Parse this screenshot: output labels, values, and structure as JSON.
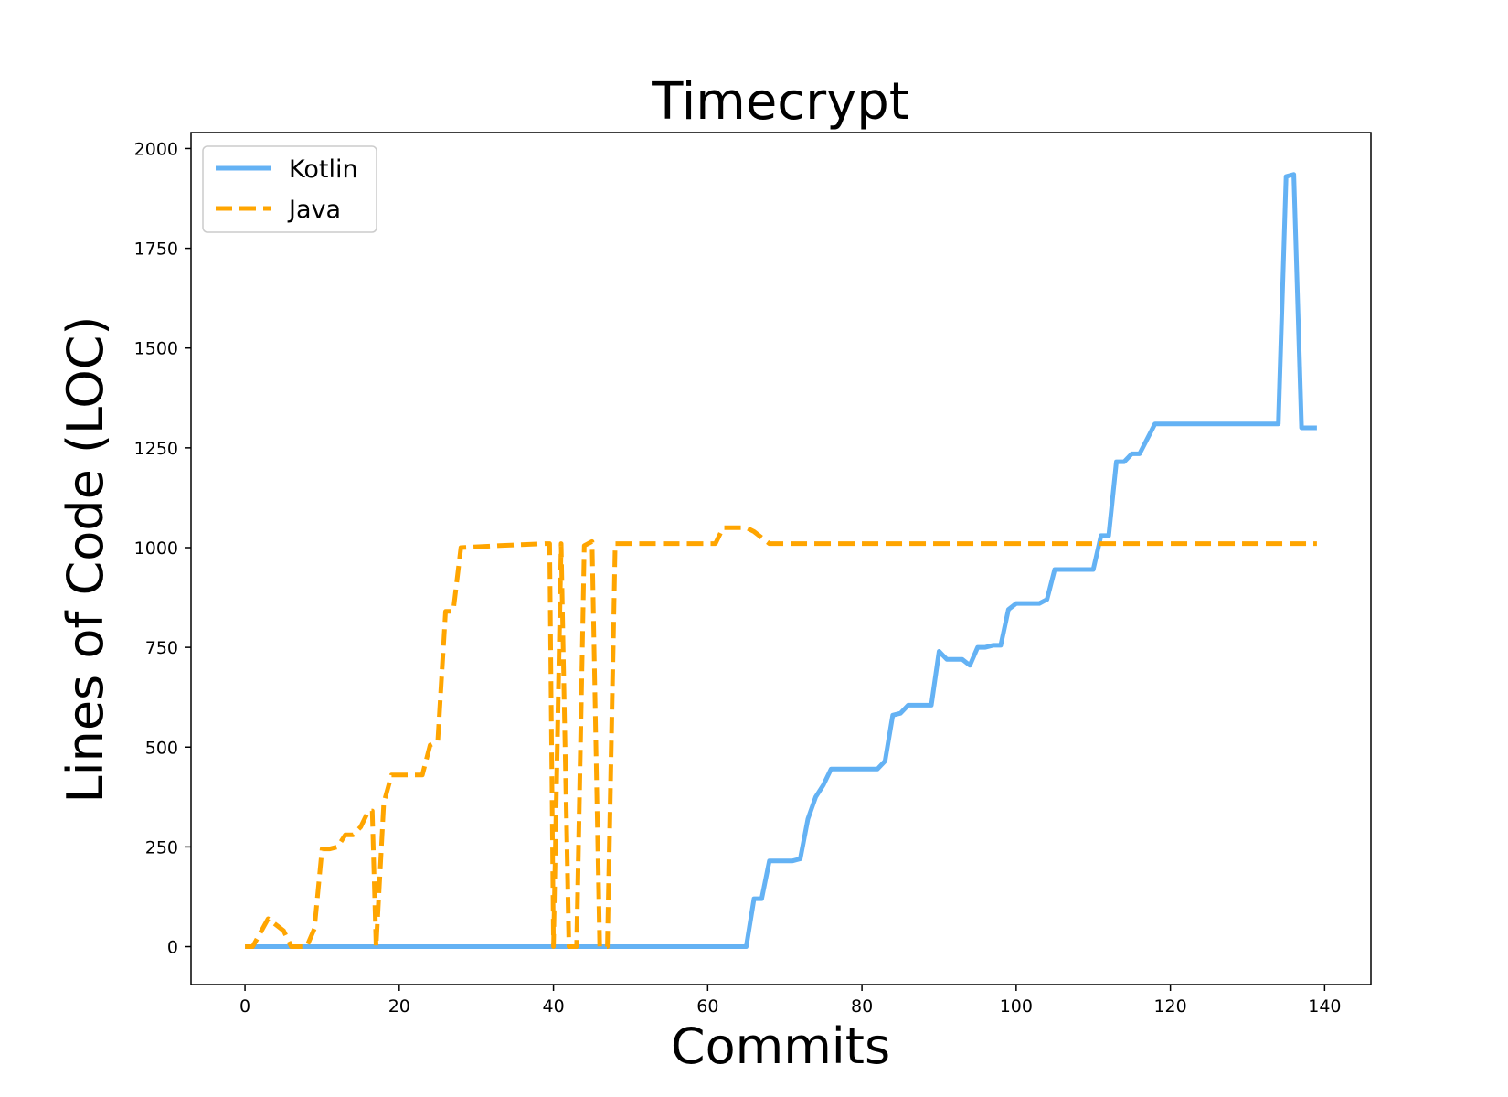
{
  "chart_data": {
    "type": "line",
    "title": "Timecrypt",
    "xlabel": "Commits",
    "ylabel": "Lines of Code (LOC)",
    "xlim": [
      -7,
      146
    ],
    "ylim": [
      -95,
      2040
    ],
    "xticks": [
      0,
      20,
      40,
      60,
      80,
      100,
      120,
      140
    ],
    "yticks": [
      0,
      250,
      500,
      750,
      1000,
      1250,
      1500,
      1750,
      2000
    ],
    "grid": false,
    "legend": {
      "position": "top-left"
    },
    "series": [
      {
        "name": "Kotlin",
        "color": "#64b2f4",
        "dash": "solid",
        "points": [
          [
            0,
            0
          ],
          [
            65,
            0
          ],
          [
            66,
            120
          ],
          [
            67,
            120
          ],
          [
            68,
            215
          ],
          [
            71,
            215
          ],
          [
            72,
            220
          ],
          [
            73,
            320
          ],
          [
            74,
            375
          ],
          [
            75,
            405
          ],
          [
            76,
            445
          ],
          [
            82,
            445
          ],
          [
            83,
            465
          ],
          [
            84,
            580
          ],
          [
            85,
            585
          ],
          [
            86,
            605
          ],
          [
            89,
            605
          ],
          [
            90,
            740
          ],
          [
            91,
            720
          ],
          [
            93,
            720
          ],
          [
            94,
            705
          ],
          [
            95,
            750
          ],
          [
            96,
            750
          ],
          [
            97,
            755
          ],
          [
            98,
            755
          ],
          [
            99,
            845
          ],
          [
            100,
            860
          ],
          [
            103,
            860
          ],
          [
            104,
            870
          ],
          [
            105,
            945
          ],
          [
            110,
            945
          ],
          [
            111,
            1030
          ],
          [
            112,
            1030
          ],
          [
            113,
            1215
          ],
          [
            114,
            1215
          ],
          [
            115,
            1235
          ],
          [
            116,
            1235
          ],
          [
            118,
            1310
          ],
          [
            134,
            1310
          ],
          [
            135,
            1930
          ],
          [
            136,
            1935
          ],
          [
            137,
            1300
          ],
          [
            139,
            1300
          ]
        ]
      },
      {
        "name": "Java",
        "color": "#ffa500",
        "dash": "dashed",
        "points": [
          [
            0,
            0
          ],
          [
            1,
            0
          ],
          [
            3,
            70
          ],
          [
            4,
            55
          ],
          [
            5,
            40
          ],
          [
            6,
            0
          ],
          [
            8,
            0
          ],
          [
            9,
            45
          ],
          [
            10,
            245
          ],
          [
            11,
            245
          ],
          [
            12,
            250
          ],
          [
            13,
            280
          ],
          [
            14,
            280
          ],
          [
            15,
            300
          ],
          [
            16,
            340
          ],
          [
            16.5,
            340
          ],
          [
            17,
            0
          ],
          [
            18,
            360
          ],
          [
            19,
            430
          ],
          [
            23,
            430
          ],
          [
            24,
            505
          ],
          [
            25,
            515
          ],
          [
            26,
            840
          ],
          [
            27,
            840
          ],
          [
            28,
            1000
          ],
          [
            33,
            1005
          ],
          [
            39,
            1010
          ],
          [
            39.5,
            1010
          ],
          [
            40,
            0
          ],
          [
            41,
            1010
          ],
          [
            42,
            0
          ],
          [
            43,
            0
          ],
          [
            44,
            1005
          ],
          [
            45,
            1015
          ],
          [
            46,
            0
          ],
          [
            47,
            0
          ],
          [
            48,
            1010
          ],
          [
            61,
            1010
          ],
          [
            62,
            1050
          ],
          [
            65,
            1050
          ],
          [
            66,
            1040
          ],
          [
            68,
            1010
          ],
          [
            139,
            1010
          ]
        ]
      }
    ]
  }
}
